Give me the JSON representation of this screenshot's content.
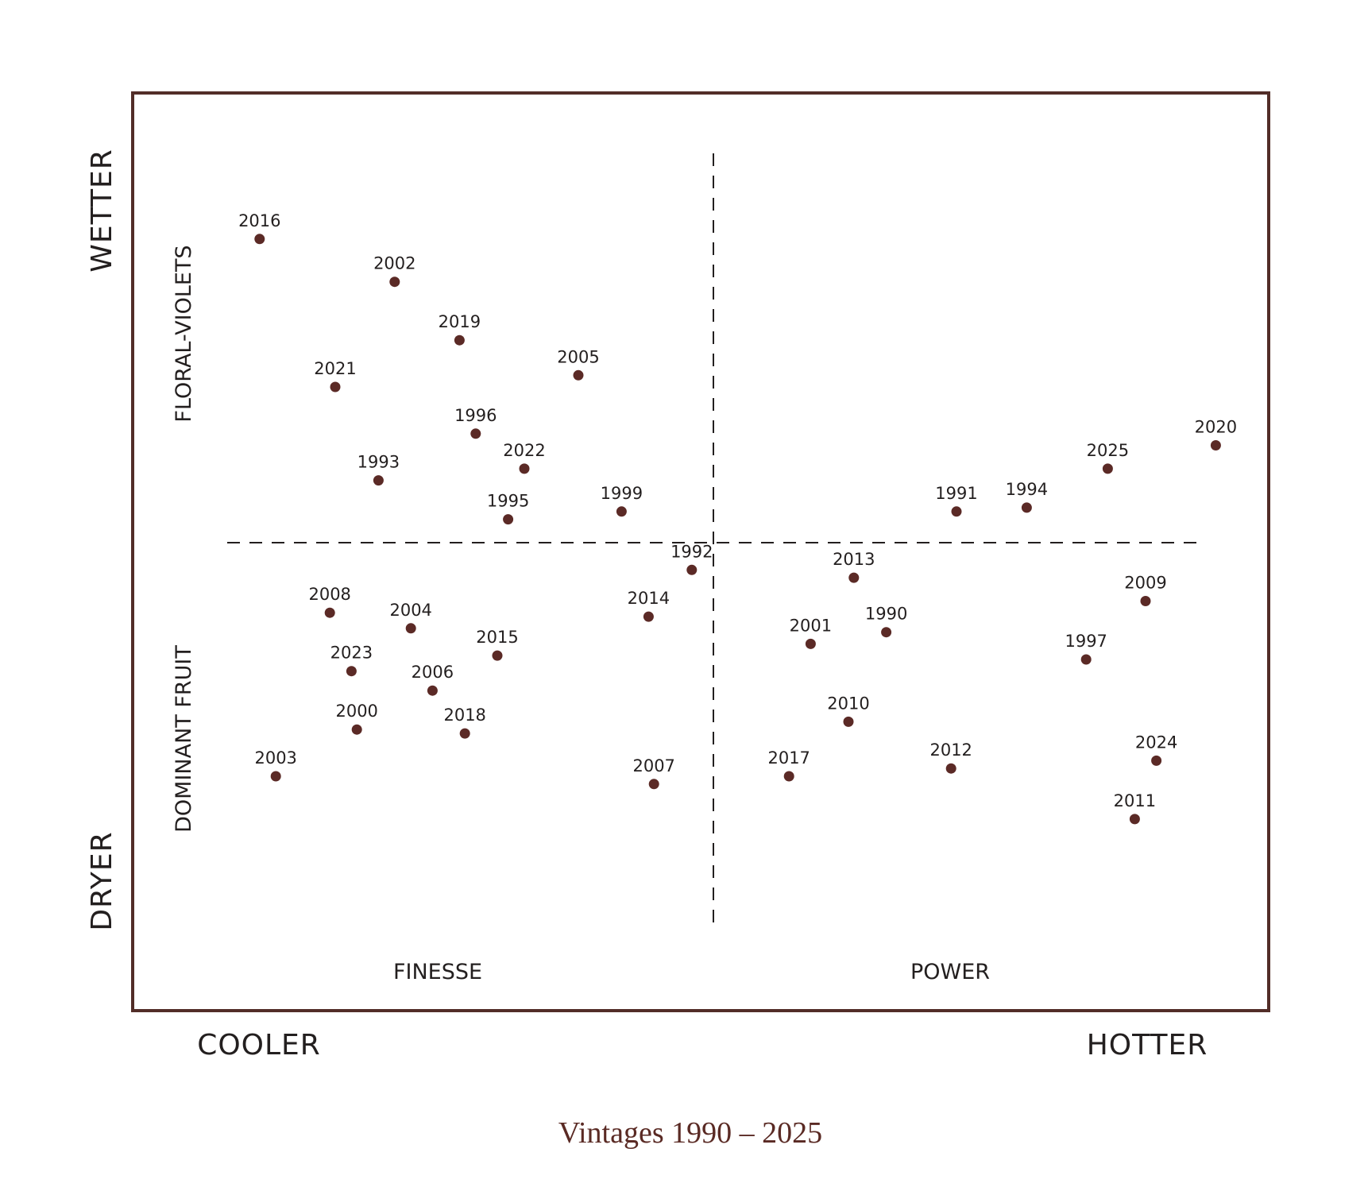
{
  "colors": {
    "frame": "#522d28",
    "point": "#5b2a26",
    "text": "#231f1f",
    "caption": "#5a2a24"
  },
  "axis_labels": {
    "x_low": "COOLER",
    "x_high": "HOTTER",
    "y_high": "WETTER",
    "y_low": "DRYER"
  },
  "quadrant_labels": {
    "upper_left": "FLORAL-VIOLETS",
    "lower_left": "DOMINANT FRUIT",
    "bottom_left": "FINESSE",
    "bottom_right": "POWER"
  },
  "caption": "Vintages 1990 – 2025",
  "chart_data": {
    "type": "scatter",
    "title": "Vintages 1990 – 2025",
    "xlabel": "COOLER → HOTTER",
    "ylabel": "DRYER → WETTER",
    "xlim": [
      -10,
      10
    ],
    "ylim": [
      -10,
      10
    ],
    "grid": false,
    "center_lines": "dashed",
    "points": [
      {
        "label": "2016",
        "x": -8.4,
        "y": 7.8
      },
      {
        "label": "2002",
        "x": -5.9,
        "y": 6.7
      },
      {
        "label": "2019",
        "x": -4.7,
        "y": 5.2
      },
      {
        "label": "2005",
        "x": -2.5,
        "y": 4.3
      },
      {
        "label": "2021",
        "x": -7.0,
        "y": 4.0
      },
      {
        "label": "1996",
        "x": -4.4,
        "y": 2.8
      },
      {
        "label": "2022",
        "x": -3.5,
        "y": 1.9
      },
      {
        "label": "1993",
        "x": -6.2,
        "y": 1.6
      },
      {
        "label": "1995",
        "x": -3.8,
        "y": 0.6
      },
      {
        "label": "1999",
        "x": -1.7,
        "y": 0.8
      },
      {
        "label": "1991",
        "x": 4.5,
        "y": 0.8
      },
      {
        "label": "1994",
        "x": 5.8,
        "y": 0.9
      },
      {
        "label": "2025",
        "x": 7.3,
        "y": 1.9
      },
      {
        "label": "2020",
        "x": 9.3,
        "y": 2.5
      },
      {
        "label": "1992",
        "x": -0.4,
        "y": -0.7
      },
      {
        "label": "2013",
        "x": 2.6,
        "y": -0.9
      },
      {
        "label": "2008",
        "x": -7.1,
        "y": -1.8
      },
      {
        "label": "2004",
        "x": -5.6,
        "y": -2.2
      },
      {
        "label": "2014",
        "x": -1.2,
        "y": -1.9
      },
      {
        "label": "2001",
        "x": 1.8,
        "y": -2.6
      },
      {
        "label": "1990",
        "x": 3.2,
        "y": -2.3
      },
      {
        "label": "2009",
        "x": 8.0,
        "y": -1.5
      },
      {
        "label": "2015",
        "x": -4.0,
        "y": -2.9
      },
      {
        "label": "2023",
        "x": -6.7,
        "y": -3.3
      },
      {
        "label": "2006",
        "x": -5.2,
        "y": -3.8
      },
      {
        "label": "1997",
        "x": 6.9,
        "y": -3.0
      },
      {
        "label": "2000",
        "x": -6.6,
        "y": -4.8
      },
      {
        "label": "2018",
        "x": -4.6,
        "y": -4.9
      },
      {
        "label": "2010",
        "x": 2.5,
        "y": -4.6
      },
      {
        "label": "2003",
        "x": -8.1,
        "y": -6.0
      },
      {
        "label": "2007",
        "x": -1.1,
        "y": -6.2
      },
      {
        "label": "2017",
        "x": 1.4,
        "y": -6.0
      },
      {
        "label": "2012",
        "x": 4.4,
        "y": -5.8
      },
      {
        "label": "2024",
        "x": 8.2,
        "y": -5.6
      },
      {
        "label": "2011",
        "x": 7.8,
        "y": -7.1
      }
    ]
  }
}
